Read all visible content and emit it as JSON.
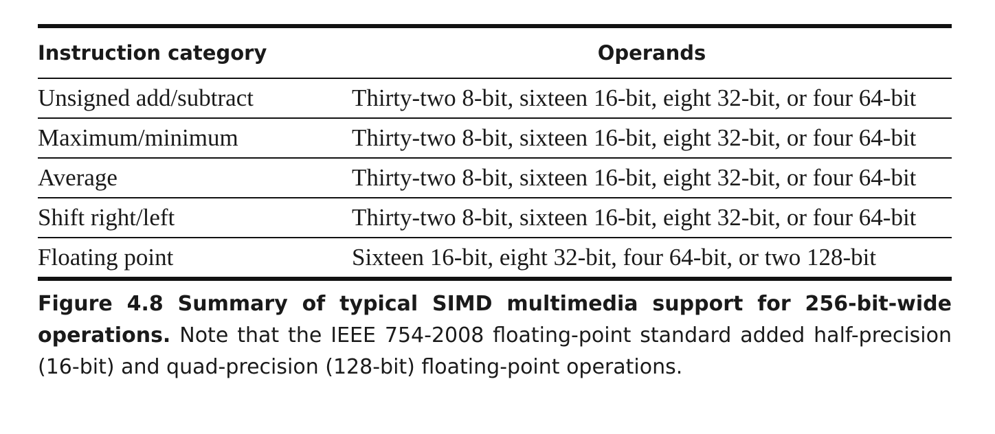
{
  "table": {
    "headers": {
      "category": "Instruction category",
      "operands": "Operands"
    },
    "rows": [
      {
        "category": "Unsigned add/subtract",
        "operands": "Thirty-two 8-bit, sixteen 16-bit, eight 32-bit, or four 64-bit"
      },
      {
        "category": "Maximum/minimum",
        "operands": "Thirty-two 8-bit, sixteen 16-bit, eight 32-bit, or four 64-bit"
      },
      {
        "category": "Average",
        "operands": "Thirty-two 8-bit, sixteen 16-bit, eight 32-bit, or four 64-bit"
      },
      {
        "category": "Shift right/left",
        "operands": "Thirty-two 8-bit, sixteen 16-bit, eight 32-bit, or four 64-bit"
      },
      {
        "category": "Floating point",
        "operands": "Sixteen 16-bit, eight 32-bit, four 64-bit, or two 128-bit"
      }
    ]
  },
  "caption": {
    "label": "Figure 4.8",
    "title": "Summary of typical SIMD multimedia support for 256-bit-wide operations.",
    "text": "Note that the IEEE 754-2008 floating-point standard added half-precision (16-bit) and quad-precision (128-bit) floating-point operations."
  }
}
